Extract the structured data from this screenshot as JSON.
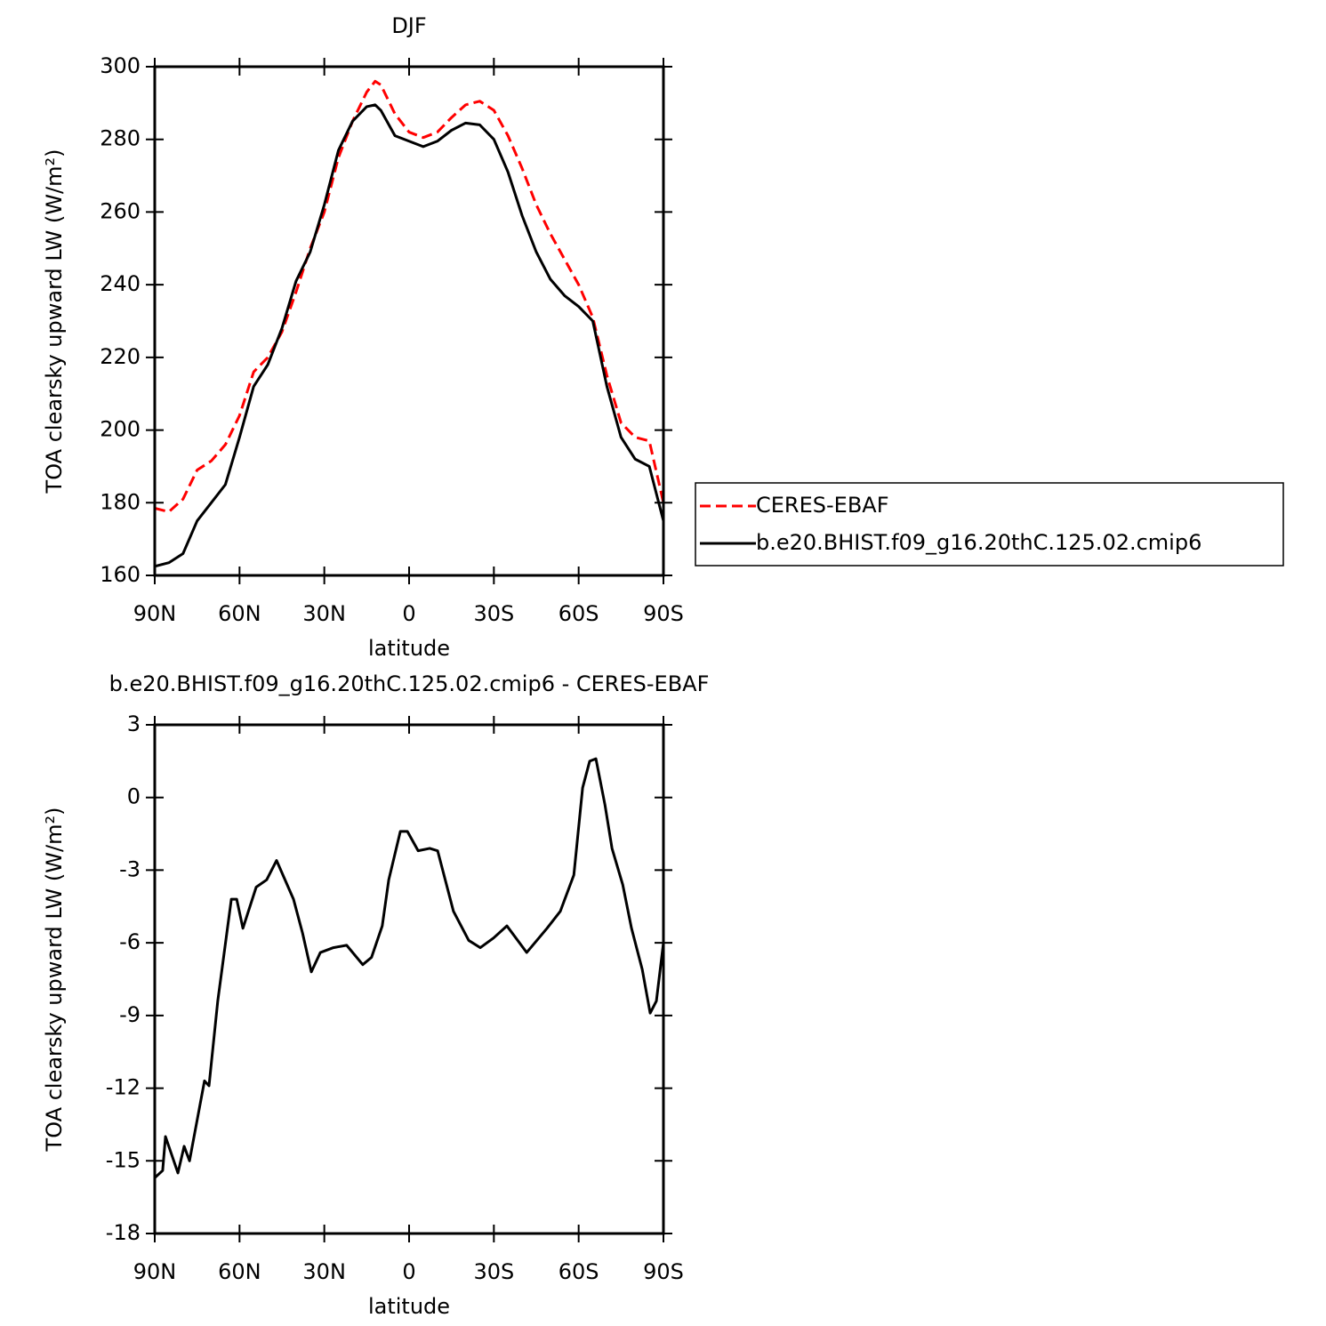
{
  "chart_data": [
    {
      "type": "line",
      "title": "DJF",
      "xlabel": "latitude",
      "ylabel": "TOA clearsky upward LW (W/m²)",
      "x": [
        90,
        85,
        80,
        75,
        70,
        65,
        60,
        55,
        50,
        45,
        40,
        35,
        30,
        25,
        20,
        15,
        12,
        10,
        5,
        0,
        -5,
        -10,
        -15,
        -20,
        -25,
        -30,
        -35,
        -40,
        -45,
        -50,
        -55,
        -60,
        -65,
        -70,
        -75,
        -80,
        -85,
        -90
      ],
      "series": [
        {
          "name": "CERES-EBAF",
          "color": "#ff0000",
          "linestyle": "dashed",
          "values": [
            178.5,
            177.5,
            181,
            189,
            191.5,
            196,
            204,
            216,
            220,
            227,
            238,
            250,
            260,
            275,
            285,
            293,
            296,
            295,
            287,
            282,
            280.5,
            282,
            286,
            289.5,
            290.5,
            288,
            281,
            272,
            262,
            254,
            247,
            240,
            231,
            215,
            202,
            198,
            197,
            180
          ]
        },
        {
          "name": "b.e20.BHIST.f09_g16.20thC.125.02.cmip6",
          "color": "#000000",
          "linestyle": "solid",
          "values": [
            162.5,
            163.5,
            166,
            175,
            180,
            185,
            198,
            212,
            218,
            228,
            241,
            249,
            262,
            277,
            285,
            289,
            289.5,
            288,
            281,
            279.5,
            278,
            279.5,
            282.5,
            284.5,
            284,
            280,
            271,
            259,
            249,
            241.5,
            237,
            234,
            230,
            212,
            198,
            192,
            190,
            175
          ]
        }
      ],
      "xlim": [
        90,
        -90
      ],
      "xticks": [
        {
          "value": 90,
          "label": "90N"
        },
        {
          "value": 60,
          "label": "60N"
        },
        {
          "value": 30,
          "label": "30N"
        },
        0,
        {
          "value": -30,
          "label": "30S"
        },
        {
          "value": -60,
          "label": "60S"
        },
        {
          "value": -90,
          "label": "90S"
        }
      ],
      "ylim": [
        160,
        300
      ],
      "yticks": [
        160,
        180,
        200,
        220,
        240,
        260,
        280,
        300
      ],
      "legend": "right"
    },
    {
      "type": "line",
      "title": "b.e20.BHIST.f09_g16.20thC.125.02.cmip6 - CERES-EBAF",
      "xlabel": "latitude",
      "ylabel": "TOA clearsky upward LW (W/m²)",
      "x": [
        90,
        87.2,
        86.2,
        81.8,
        79.6,
        77.7,
        72.4,
        70.8,
        67.7,
        62.9,
        61,
        58.8,
        54.1,
        50.4,
        46.9,
        40.9,
        37.7,
        34.6,
        31.4,
        26.8,
        22.1,
        16.4,
        13.3,
        9.5,
        7.2,
        3.1,
        0.6,
        -3.2,
        -7.3,
        -10.1,
        -15.7,
        -21.1,
        -25.2,
        -29.9,
        -34.6,
        -41.6,
        -48.8,
        -53.5,
        -58.3,
        -61.4,
        -63.9,
        -66.1,
        -69.3,
        -71.8,
        -75.6,
        -78.7,
        -82.5,
        -85.3,
        -87.5,
        -90
      ],
      "series": [
        {
          "name": null,
          "color": "#000000",
          "linestyle": "solid",
          "values": [
            -15.7,
            -15.4,
            -14.0,
            -15.5,
            -14.4,
            -15.0,
            -11.7,
            -11.9,
            -8.4,
            -4.2,
            -4.2,
            -5.4,
            -3.7,
            -3.4,
            -2.6,
            -4.2,
            -5.6,
            -7.2,
            -6.4,
            -6.2,
            -6.1,
            -6.9,
            -6.6,
            -5.3,
            -3.4,
            -1.4,
            -1.4,
            -2.2,
            -2.1,
            -2.2,
            -4.7,
            -5.9,
            -6.2,
            -5.8,
            -5.3,
            -6.4,
            -5.4,
            -4.7,
            -3.2,
            0.4,
            1.5,
            1.6,
            -0.3,
            -2.1,
            -3.6,
            -5.4,
            -7.1,
            -8.9,
            -8.4,
            -6.0
          ]
        }
      ],
      "xlim": [
        90,
        -90
      ],
      "xticks": [
        {
          "value": 90,
          "label": "90N"
        },
        {
          "value": 60,
          "label": "60N"
        },
        {
          "value": 30,
          "label": "30N"
        },
        0,
        {
          "value": -30,
          "label": "30S"
        },
        {
          "value": -60,
          "label": "60S"
        },
        {
          "value": -90,
          "label": "90S"
        }
      ],
      "ylim": [
        -18,
        3
      ],
      "yticks": [
        -18,
        -15,
        -12,
        -9,
        -6,
        -3,
        0,
        3
      ]
    }
  ]
}
